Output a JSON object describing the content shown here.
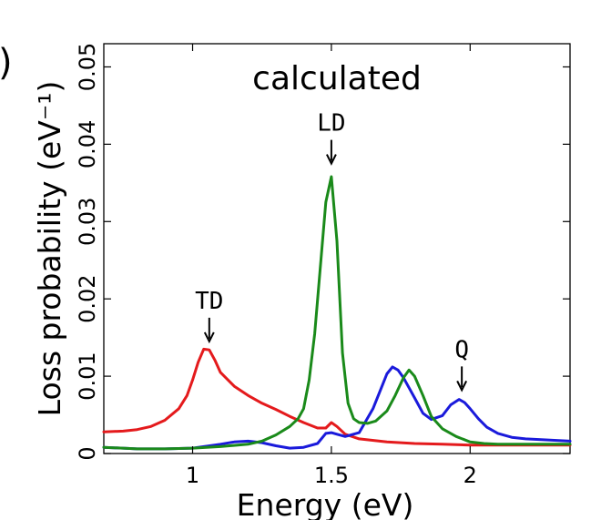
{
  "chart_data": {
    "type": "line",
    "panel_label": ")",
    "title": "calculated",
    "xlabel": "Energy (eV)",
    "ylabel": "Loss probability (eV⁻¹)",
    "xlim": [
      0.68,
      2.36
    ],
    "ylim": [
      0,
      0.053
    ],
    "x_ticks": [
      1,
      1.5,
      2
    ],
    "x_tick_labels": [
      "1",
      "1.5",
      "2"
    ],
    "y_ticks": [
      0,
      0.01,
      0.02,
      0.03,
      0.04,
      0.05
    ],
    "y_tick_labels": [
      "0",
      "0.01",
      "0.02",
      "0.03",
      "0.04",
      "0.05"
    ],
    "grid": false,
    "series": [
      {
        "color": "#e41a1c",
        "x": [
          0.68,
          0.75,
          0.8,
          0.85,
          0.9,
          0.95,
          0.98,
          1.0,
          1.02,
          1.04,
          1.06,
          1.08,
          1.1,
          1.15,
          1.2,
          1.25,
          1.3,
          1.35,
          1.4,
          1.45,
          1.48,
          1.5,
          1.52,
          1.55,
          1.6,
          1.7,
          1.8,
          1.9,
          2.0,
          2.1,
          2.2,
          2.36
        ],
        "y": [
          0.0028,
          0.0029,
          0.0031,
          0.0035,
          0.0043,
          0.0058,
          0.0075,
          0.0095,
          0.0118,
          0.0135,
          0.0134,
          0.0121,
          0.0105,
          0.0087,
          0.0075,
          0.0065,
          0.0057,
          0.0048,
          0.004,
          0.0033,
          0.0033,
          0.004,
          0.0035,
          0.0025,
          0.0019,
          0.0015,
          0.0013,
          0.0012,
          0.0011,
          0.0011,
          0.0011,
          0.0011
        ]
      },
      {
        "color": "#1a1adb",
        "x": [
          0.68,
          0.8,
          0.9,
          1.0,
          1.1,
          1.15,
          1.2,
          1.25,
          1.3,
          1.35,
          1.4,
          1.45,
          1.48,
          1.5,
          1.52,
          1.55,
          1.6,
          1.65,
          1.68,
          1.7,
          1.72,
          1.74,
          1.76,
          1.78,
          1.8,
          1.83,
          1.86,
          1.9,
          1.93,
          1.96,
          1.98,
          2.0,
          2.03,
          2.06,
          2.1,
          2.15,
          2.2,
          2.36
        ],
        "y": [
          0.0008,
          0.0006,
          0.0006,
          0.0007,
          0.0012,
          0.0015,
          0.0016,
          0.0014,
          0.001,
          0.0007,
          0.0008,
          0.0013,
          0.0026,
          0.0027,
          0.0025,
          0.0022,
          0.0027,
          0.0058,
          0.0085,
          0.0103,
          0.0112,
          0.0108,
          0.0098,
          0.0085,
          0.0072,
          0.0052,
          0.0044,
          0.0049,
          0.0063,
          0.007,
          0.0066,
          0.0058,
          0.0045,
          0.0034,
          0.0026,
          0.0021,
          0.0019,
          0.0016
        ]
      },
      {
        "color": "#1a8a1a",
        "x": [
          0.68,
          0.8,
          0.9,
          1.0,
          1.1,
          1.2,
          1.25,
          1.3,
          1.35,
          1.38,
          1.4,
          1.42,
          1.44,
          1.46,
          1.48,
          1.5,
          1.52,
          1.54,
          1.56,
          1.58,
          1.6,
          1.63,
          1.66,
          1.7,
          1.73,
          1.76,
          1.78,
          1.8,
          1.83,
          1.86,
          1.9,
          1.95,
          2.0,
          2.05,
          2.1,
          2.2,
          2.36
        ],
        "y": [
          0.0008,
          0.0006,
          0.0006,
          0.0007,
          0.0009,
          0.0012,
          0.0016,
          0.0024,
          0.0035,
          0.0045,
          0.0058,
          0.0095,
          0.0155,
          0.024,
          0.0325,
          0.0358,
          0.0275,
          0.013,
          0.0065,
          0.0045,
          0.004,
          0.0039,
          0.0042,
          0.0055,
          0.0075,
          0.0098,
          0.0108,
          0.01,
          0.0075,
          0.0048,
          0.0032,
          0.0022,
          0.0015,
          0.0013,
          0.0012,
          0.0012,
          0.0012
        ]
      }
    ],
    "annotations": [
      {
        "text": "TD",
        "x": 1.06,
        "y_tip": 0.0145
      },
      {
        "text": "LD",
        "x": 1.5,
        "y_tip": 0.0375
      },
      {
        "text": "Q",
        "x": 1.97,
        "y_tip": 0.0082
      }
    ]
  }
}
